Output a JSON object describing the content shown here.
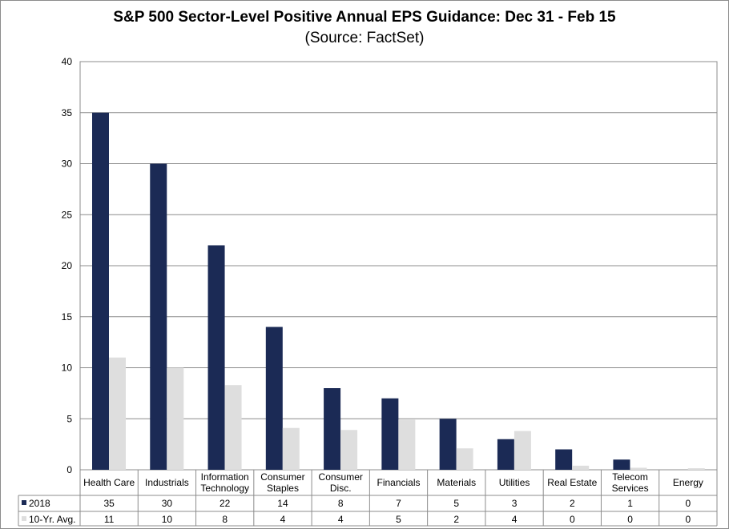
{
  "chart_data": {
    "type": "bar",
    "title": "S&P 500 Sector-Level Positive Annual EPS Guidance: Dec 31 - Feb 15",
    "subtitle": "(Source: FactSet)",
    "categories": [
      "Health Care",
      "Industrials",
      "Information Technology",
      "Consumer Staples",
      "Consumer Disc.",
      "Financials",
      "Materials",
      "Utilities",
      "Real Estate",
      "Telecom Services",
      "Energy"
    ],
    "series": [
      {
        "name": "2018",
        "values": [
          35,
          30,
          22,
          14,
          8,
          7,
          5,
          3,
          2,
          1,
          0
        ],
        "labels": [
          "35",
          "30",
          "22",
          "14",
          "8",
          "7",
          "5",
          "3",
          "2",
          "1",
          "0"
        ],
        "color": "#1b2a55"
      },
      {
        "name": "10-Yr. Avg.",
        "values": [
          11,
          10,
          8.3,
          4.1,
          3.9,
          4.9,
          2.1,
          3.8,
          0.4,
          0.2,
          0.15
        ],
        "labels": [
          "11",
          "10",
          "8",
          "4",
          "4",
          "5",
          "2",
          "4",
          "0",
          "0",
          "0"
        ],
        "color": "#dedede"
      }
    ],
    "ylim": [
      0,
      40
    ],
    "yticks": [
      "0",
      "5",
      "10",
      "15",
      "20",
      "25",
      "30",
      "35",
      "40"
    ],
    "grid": true,
    "legend": "data-table"
  }
}
